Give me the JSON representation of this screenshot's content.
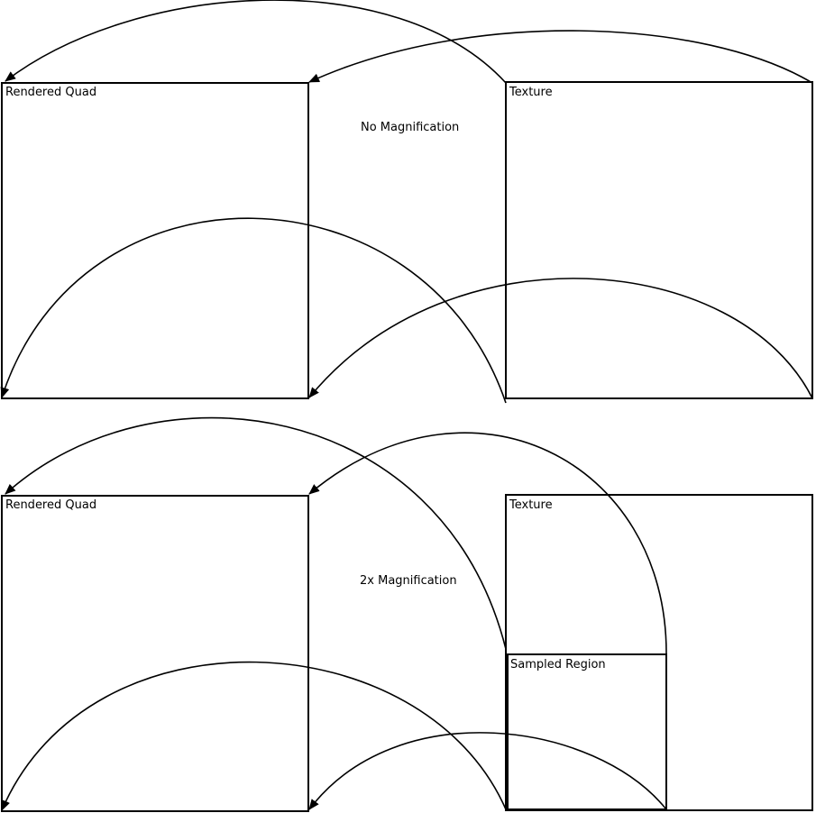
{
  "colors": {
    "stroke": "#000000",
    "background": "#ffffff"
  },
  "top_panel": {
    "quad_label": "Rendered Quad",
    "texture_label": "Texture",
    "caption": "No Magnification"
  },
  "bottom_panel": {
    "quad_label": "Rendered Quad",
    "texture_label": "Texture",
    "region_label": "Sampled Region",
    "caption": "2x Magnification"
  }
}
